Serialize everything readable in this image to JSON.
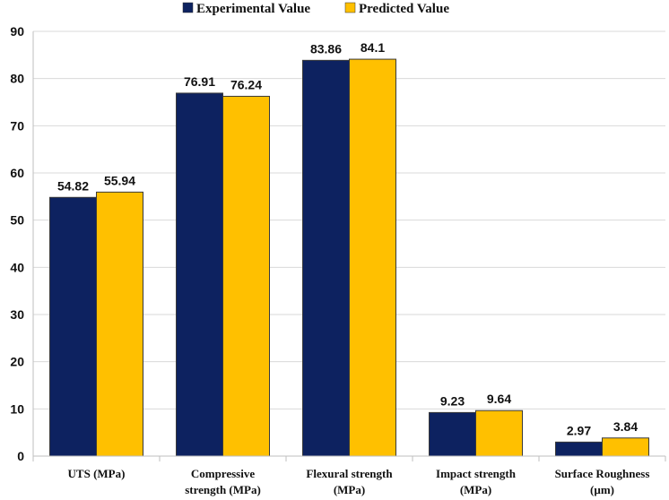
{
  "chart_data": {
    "type": "bar",
    "title": "",
    "xlabel": "",
    "ylabel": "",
    "ylim": [
      0,
      90
    ],
    "yticks": [
      0,
      10,
      20,
      30,
      40,
      50,
      60,
      70,
      80,
      90
    ],
    "grid": true,
    "legend_position": "top",
    "categories": [
      [
        "UTS (MPa)"
      ],
      [
        "Compressive",
        "strength (MPa)"
      ],
      [
        "Flexural strength",
        "(MPa)"
      ],
      [
        "Impact strength",
        "(MPa)"
      ],
      [
        "Surface Roughness",
        "(µm)"
      ]
    ],
    "series": [
      {
        "name": "Experimental Value",
        "color": "#0d2260",
        "values": [
          54.82,
          76.91,
          83.86,
          9.23,
          2.97
        ],
        "labels": [
          "54.82",
          "76.91",
          "83.86",
          "9.23",
          "2.97"
        ]
      },
      {
        "name": "Predicted Value",
        "color": "#ffc000",
        "values": [
          55.94,
          76.24,
          84.1,
          9.64,
          3.84
        ],
        "labels": [
          "55.94",
          "76.24",
          "84.1",
          "9.64",
          "3.84"
        ]
      }
    ]
  }
}
